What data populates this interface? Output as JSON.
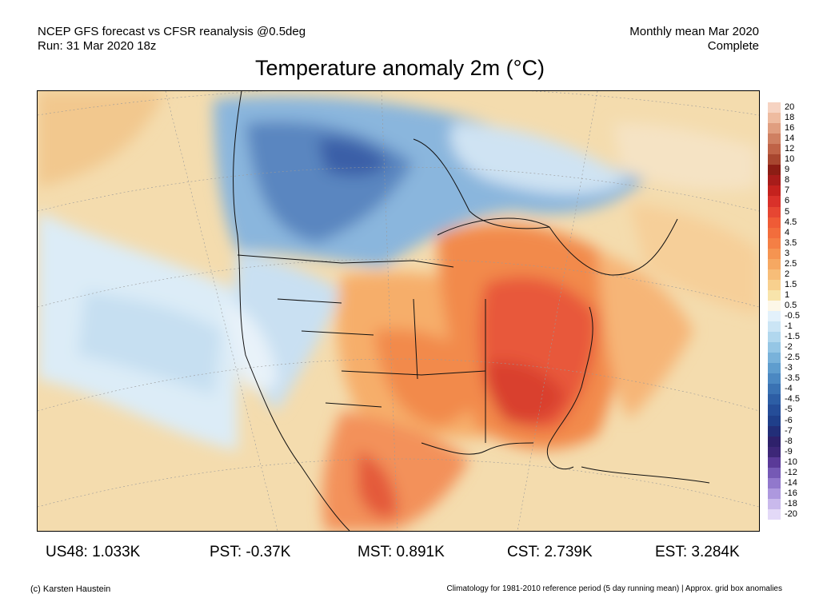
{
  "header": {
    "line1_left": "NCEP GFS forecast vs CFSR reanalysis @0.5deg",
    "line2_left": "Run: 31 Mar 2020 18z",
    "line1_right": "Monthly mean Mar 2020",
    "line2_right": "Complete"
  },
  "title": "Temperature anomaly 2m (°C)",
  "colorbar": {
    "labels": [
      "20",
      "18",
      "16",
      "14",
      "12",
      "10",
      "9",
      "8",
      "7",
      "6",
      "5",
      "4.5",
      "4",
      "3.5",
      "3",
      "2.5",
      "2",
      "1.5",
      "1",
      "0.5",
      "-0.5",
      "-1",
      "-1.5",
      "-2",
      "-2.5",
      "-3",
      "-3.5",
      "-4",
      "-4.5",
      "-5",
      "-6",
      "-7",
      "-8",
      "-9",
      "-10",
      "-12",
      "-14",
      "-16",
      "-18",
      "-20"
    ],
    "colors": [
      "#f6d3c2",
      "#eebba0",
      "#e09e80",
      "#cf8062",
      "#bf6347",
      "#a8462f",
      "#8c1d14",
      "#a81c1a",
      "#c4221e",
      "#d9312a",
      "#e64632",
      "#ef5b36",
      "#f26d3c",
      "#f47f45",
      "#f59451",
      "#f6a862",
      "#f7bd78",
      "#f8d08e",
      "#f8e4ab",
      "#fdf7e8",
      "#e3f1fb",
      "#cbe5f5",
      "#b1d7ee",
      "#95c6e5",
      "#79b2da",
      "#5f9dce",
      "#4b88c2",
      "#3a72b3",
      "#2d5ea5",
      "#254d98",
      "#1f3f8a",
      "#222e78",
      "#2e216b",
      "#3d2778",
      "#5a3a98",
      "#7559b5",
      "#9178cc",
      "#ad98de",
      "#c9b9ec",
      "#e3d9f7"
    ]
  },
  "stats": {
    "us48": "US48: 1.033K",
    "pst": "PST: -0.37K",
    "mst": "MST: 0.891K",
    "cst": "CST: 2.739K",
    "est": "EST: 3.284K"
  },
  "footer": {
    "left": "(c) Karsten Haustein",
    "right": "Climatology for 1981-2010 reference period (5 day running mean) | Approx. grid box anomalies"
  }
}
